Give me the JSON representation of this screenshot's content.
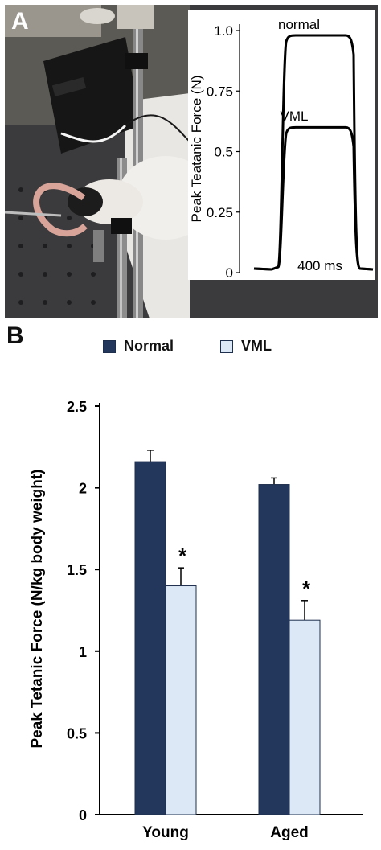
{
  "panel_a": {
    "letter": "A",
    "photo": "experimental setup: anesthetized rat with hindlimb attached to a force transducer on an optical table",
    "inset": {
      "ylabel": "Peak Teatanic Force (N)",
      "yticks": [
        "1.0",
        "0.75",
        "0.5",
        "0.25",
        "0"
      ],
      "ytick_values": [
        1.0,
        0.75,
        0.5,
        0.25,
        0
      ],
      "ylim": [
        0,
        1.0
      ],
      "label_normal": "normal",
      "label_vml": "VML",
      "duration_label": "400 ms",
      "traces": [
        {
          "label": "normal",
          "plateau": 0.98
        },
        {
          "label": "VML",
          "plateau": 0.6
        }
      ]
    }
  },
  "panel_b": {
    "letter": "B",
    "legend": [
      {
        "label": "Normal",
        "color": "#22375b"
      },
      {
        "label": "VML",
        "color": "#dde8f6"
      }
    ]
  },
  "chart_data": {
    "type": "bar",
    "categories": [
      "Young",
      "Aged"
    ],
    "series": [
      {
        "name": "Normal",
        "values": [
          2.16,
          2.02
        ],
        "errors": [
          0.07,
          0.04
        ],
        "color": "#22375b"
      },
      {
        "name": "VML",
        "values": [
          1.4,
          1.19
        ],
        "errors": [
          0.11,
          0.12
        ],
        "color": "#dde8f6"
      }
    ],
    "annotations": [
      {
        "category": "Young",
        "series": "VML",
        "text": "*"
      },
      {
        "category": "Aged",
        "series": "VML",
        "text": "*"
      }
    ],
    "ylabel": "Peak Tetanic Force (N/kg body weight)",
    "xlabel": "",
    "ylim": [
      0,
      2.5
    ],
    "yticks": [
      "0",
      "0.5",
      "1",
      "1.5",
      "2",
      "2.5"
    ],
    "ytick_values": [
      0,
      0.5,
      1,
      1.5,
      2,
      2.5
    ],
    "grid": false,
    "legend_position": "top"
  }
}
